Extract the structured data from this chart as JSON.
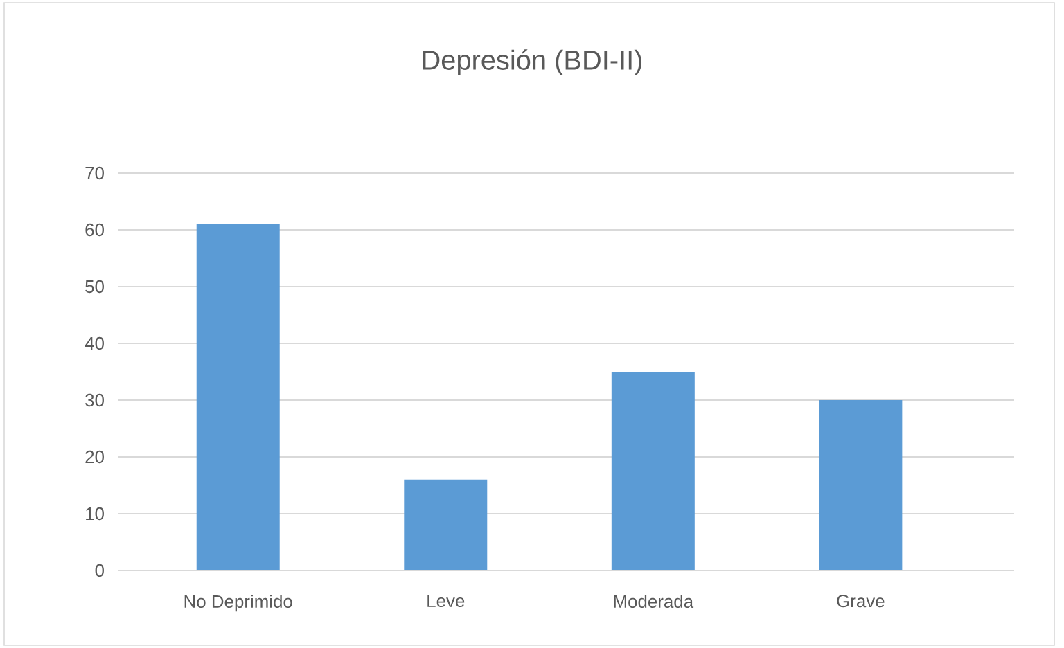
{
  "chart_data": {
    "type": "bar",
    "title": "Depresión (BDI-II)",
    "categories": [
      "No Deprimido",
      "Leve",
      "Moderada",
      "Grave"
    ],
    "values": [
      61,
      16,
      35,
      30
    ],
    "color": "#5b9bd5",
    "ylim": [
      0,
      70
    ],
    "yticks": [
      0,
      10,
      20,
      30,
      40,
      50,
      60,
      70
    ],
    "grid": "y"
  }
}
